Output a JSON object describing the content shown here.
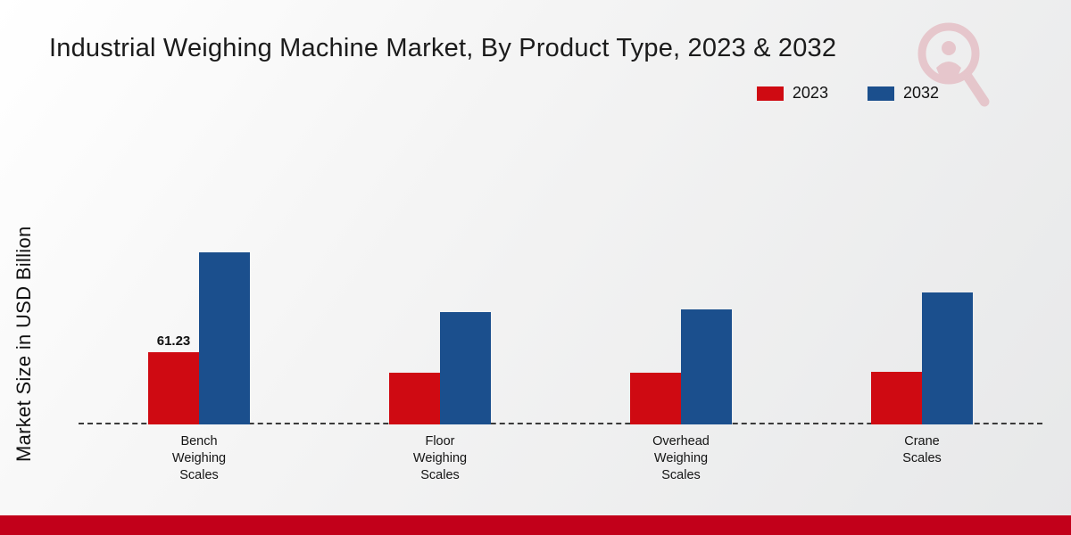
{
  "header": {
    "title": "Industrial Weighing Machine Market, By Product Type, 2023 & 2032"
  },
  "theme": {
    "red": "#cf0a12",
    "blue": "#1b4f8d",
    "footer_red": "#c2001a",
    "watermark_pink": "#d98b94"
  },
  "chart_data": {
    "type": "bar",
    "title": "Industrial Weighing Machine Market, By Product Type, 2023 & 2032",
    "xlabel": "",
    "ylabel": "Market Size in USD Billion",
    "ylim": [
      0,
      160
    ],
    "grid": false,
    "legend_position": "top-right",
    "baseline_style": "dashed",
    "categories": [
      [
        "Bench",
        "Weighing",
        "Scales"
      ],
      [
        "Floor",
        "Weighing",
        "Scales"
      ],
      [
        "Overhead",
        "Weighing",
        "Scales"
      ],
      [
        "Crane",
        "Scales"
      ]
    ],
    "series": [
      {
        "name": "2023",
        "color": "#cf0a12",
        "values": [
          61.23,
          44,
          43.5,
          44.5
        ],
        "labels": [
          "61.23",
          null,
          null,
          null
        ]
      },
      {
        "name": "2032",
        "color": "#1b4f8d",
        "values": [
          146,
          95.5,
          97.5,
          112
        ],
        "labels": [
          null,
          null,
          null,
          null
        ]
      }
    ]
  }
}
